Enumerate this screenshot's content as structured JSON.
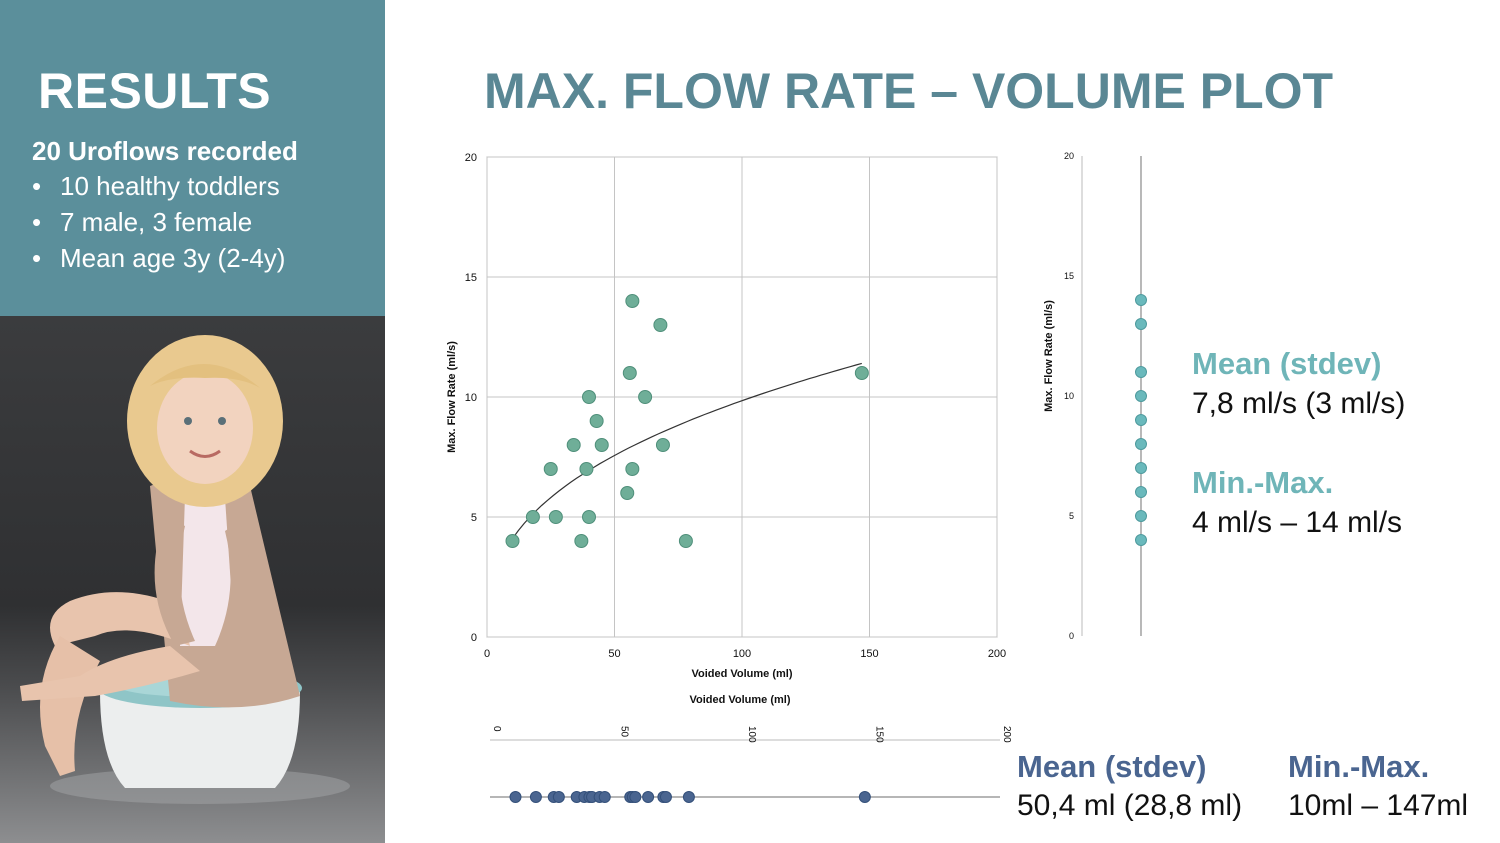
{
  "sidebar": {
    "title": "RESULTS",
    "subtitle": "20 Uroflows recorded",
    "bullets": [
      "10 healthy toddlers",
      "7 male, 3 female",
      "Mean age 3y (2-4y)"
    ]
  },
  "header": {
    "title": "MAX. FLOW RATE – VOLUME PLOT"
  },
  "colors": {
    "panel": "#5b8f9b",
    "title": "#5a8794",
    "scatter_point": "#6fae98",
    "flow_point": "#6ab9bc",
    "volume_point": "#4a6590"
  },
  "chart_data": [
    {
      "type": "scatter",
      "xlabel": "Voided Volume (ml)",
      "ylabel": "Max. Flow Rate (ml/s)",
      "xlim": [
        0,
        200
      ],
      "ylim": [
        0,
        20
      ],
      "xticks": [
        0,
        50,
        100,
        150,
        200
      ],
      "yticks": [
        0,
        5,
        10,
        15,
        20
      ],
      "grid": true,
      "points": [
        {
          "x": 10,
          "y": 4
        },
        {
          "x": 18,
          "y": 5
        },
        {
          "x": 25,
          "y": 7
        },
        {
          "x": 27,
          "y": 5
        },
        {
          "x": 34,
          "y": 8
        },
        {
          "x": 37,
          "y": 4
        },
        {
          "x": 39,
          "y": 7
        },
        {
          "x": 40,
          "y": 10
        },
        {
          "x": 40,
          "y": 5
        },
        {
          "x": 43,
          "y": 9
        },
        {
          "x": 45,
          "y": 8
        },
        {
          "x": 55,
          "y": 6
        },
        {
          "x": 56,
          "y": 11
        },
        {
          "x": 57,
          "y": 14
        },
        {
          "x": 57,
          "y": 7
        },
        {
          "x": 62,
          "y": 10
        },
        {
          "x": 68,
          "y": 13
        },
        {
          "x": 69,
          "y": 8
        },
        {
          "x": 78,
          "y": 4
        },
        {
          "x": 147,
          "y": 11
        }
      ],
      "trendline": {
        "type": "power",
        "from_x": 10,
        "to_x": 147,
        "y_at_start": 4.1,
        "y_at_end": 11.4
      }
    },
    {
      "type": "scatter",
      "orientation": "vertical-strip",
      "ylabel": "Max. Flow Rate (ml/s)",
      "ylim": [
        0,
        20
      ],
      "yticks": [
        0,
        5,
        10,
        15,
        20
      ],
      "values": [
        4,
        5,
        6,
        7,
        8,
        9,
        10,
        11,
        13,
        14
      ]
    },
    {
      "type": "scatter",
      "orientation": "horizontal-strip",
      "xlabel": "Voided Volume (ml)",
      "xlim": [
        0,
        200
      ],
      "xticks": [
        0,
        50,
        100,
        150,
        200
      ],
      "values": [
        10,
        18,
        25,
        27,
        34,
        37,
        39,
        40,
        43,
        45,
        55,
        56,
        57,
        62,
        68,
        69,
        78,
        147
      ]
    }
  ],
  "stats": {
    "flow": {
      "mean_label": "Mean (stdev)",
      "mean_value": "7,8 ml/s (3 ml/s)",
      "range_label": "Min.-Max.",
      "range_value": "4 ml/s – 14 ml/s"
    },
    "volume": {
      "mean_label": "Mean (stdev)",
      "mean_value": "50,4 ml (28,8 ml)",
      "range_label": "Min.-Max.",
      "range_value": "10ml – 147ml"
    }
  }
}
